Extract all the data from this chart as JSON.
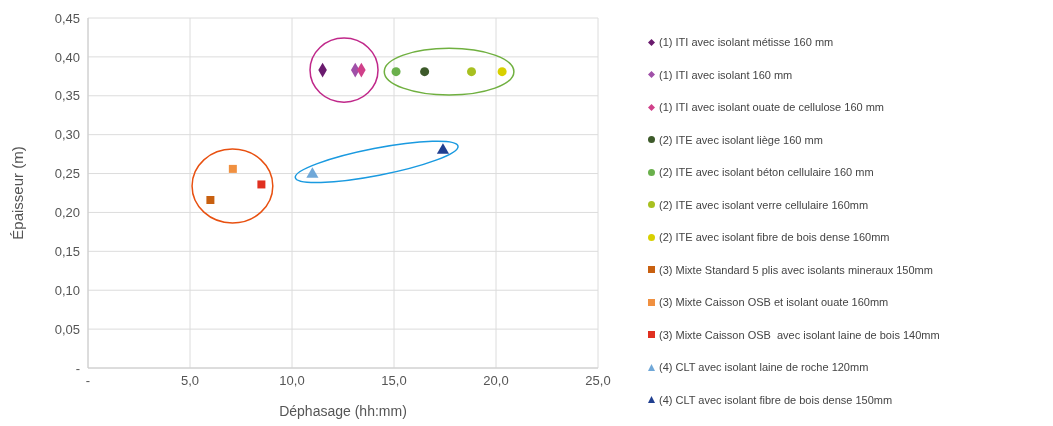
{
  "chart_data": {
    "type": "scatter",
    "xlabel": "Déphasage (hh:mm)",
    "ylabel": "Épaisseur (m)",
    "xlim": [
      0,
      25
    ],
    "ylim": [
      0,
      0.45
    ],
    "xticks": [
      {
        "value": 0,
        "label": "-"
      },
      {
        "value": 5,
        "label": "5,0"
      },
      {
        "value": 10,
        "label": "10,0"
      },
      {
        "value": 15,
        "label": "15,0"
      },
      {
        "value": 20,
        "label": "20,0"
      },
      {
        "value": 25,
        "label": "25,0"
      }
    ],
    "yticks": [
      {
        "value": 0,
        "label": "-"
      },
      {
        "value": 0.05,
        "label": "0,05"
      },
      {
        "value": 0.1,
        "label": "0,10"
      },
      {
        "value": 0.15,
        "label": "0,15"
      },
      {
        "value": 0.2,
        "label": "0,20"
      },
      {
        "value": 0.25,
        "label": "0,25"
      },
      {
        "value": 0.3,
        "label": "0,30"
      },
      {
        "value": 0.35,
        "label": "0,35"
      },
      {
        "value": 0.4,
        "label": "0,40"
      },
      {
        "value": 0.45,
        "label": "0,45"
      }
    ],
    "grid": true,
    "legend": "right",
    "series": [
      {
        "name": "(1) ITI avec isolant métisse 160 mm",
        "color": "#6a1b6e",
        "marker": "diamond",
        "x": [
          11.5
        ],
        "values": [
          0.383
        ]
      },
      {
        "name": "(1) ITI avec isolant 160 mm",
        "color": "#a050a8",
        "marker": "diamond",
        "x": [
          13.1
        ],
        "values": [
          0.383
        ]
      },
      {
        "name": "(1) ITI avec isolant ouate de cellulose 160 mm",
        "color": "#d0408a",
        "marker": "diamond",
        "x": [
          13.4
        ],
        "values": [
          0.383
        ]
      },
      {
        "name": "(2) ITE avec isolant liège 160 mm",
        "color": "#3d5a2a",
        "marker": "circle",
        "x": [
          16.5
        ],
        "values": [
          0.381
        ]
      },
      {
        "name": "(2) ITE avec isolant béton cellulaire 160 mm",
        "color": "#6ab04c",
        "marker": "circle",
        "x": [
          15.1
        ],
        "values": [
          0.381
        ]
      },
      {
        "name": "(2) ITE avec isolant verre cellulaire 160mm",
        "color": "#a8c020",
        "marker": "circle",
        "x": [
          18.8
        ],
        "values": [
          0.381
        ]
      },
      {
        "name": "(2) ITE avec isolant fibre de bois dense 160mm",
        "color": "#d8d000",
        "marker": "circle",
        "x": [
          20.3
        ],
        "values": [
          0.381
        ]
      },
      {
        "name": "(3) Mixte Standard 5 plis avec isolants mineraux 150mm",
        "color": "#c86010",
        "marker": "square",
        "x": [
          6.0
        ],
        "values": [
          0.216
        ]
      },
      {
        "name": "(3) Mixte Caisson OSB et isolant ouate 160mm",
        "color": "#f09040",
        "marker": "square",
        "x": [
          7.1
        ],
        "values": [
          0.256
        ]
      },
      {
        "name": "(3) Mixte Caisson OSB  avec isolant laine de bois 140mm",
        "color": "#e03020",
        "marker": "square",
        "x": [
          8.5
        ],
        "values": [
          0.236
        ]
      },
      {
        "name": "(4) CLT avec isolant laine de roche 120mm",
        "color": "#70a8d8",
        "marker": "triangle",
        "x": [
          11.0
        ],
        "values": [
          0.249
        ]
      },
      {
        "name": "(4) CLT avec isolant fibre de bois dense 150mm",
        "color": "#203f90",
        "marker": "triangle",
        "x": [
          17.4
        ],
        "values": [
          0.28
        ]
      }
    ]
  }
}
